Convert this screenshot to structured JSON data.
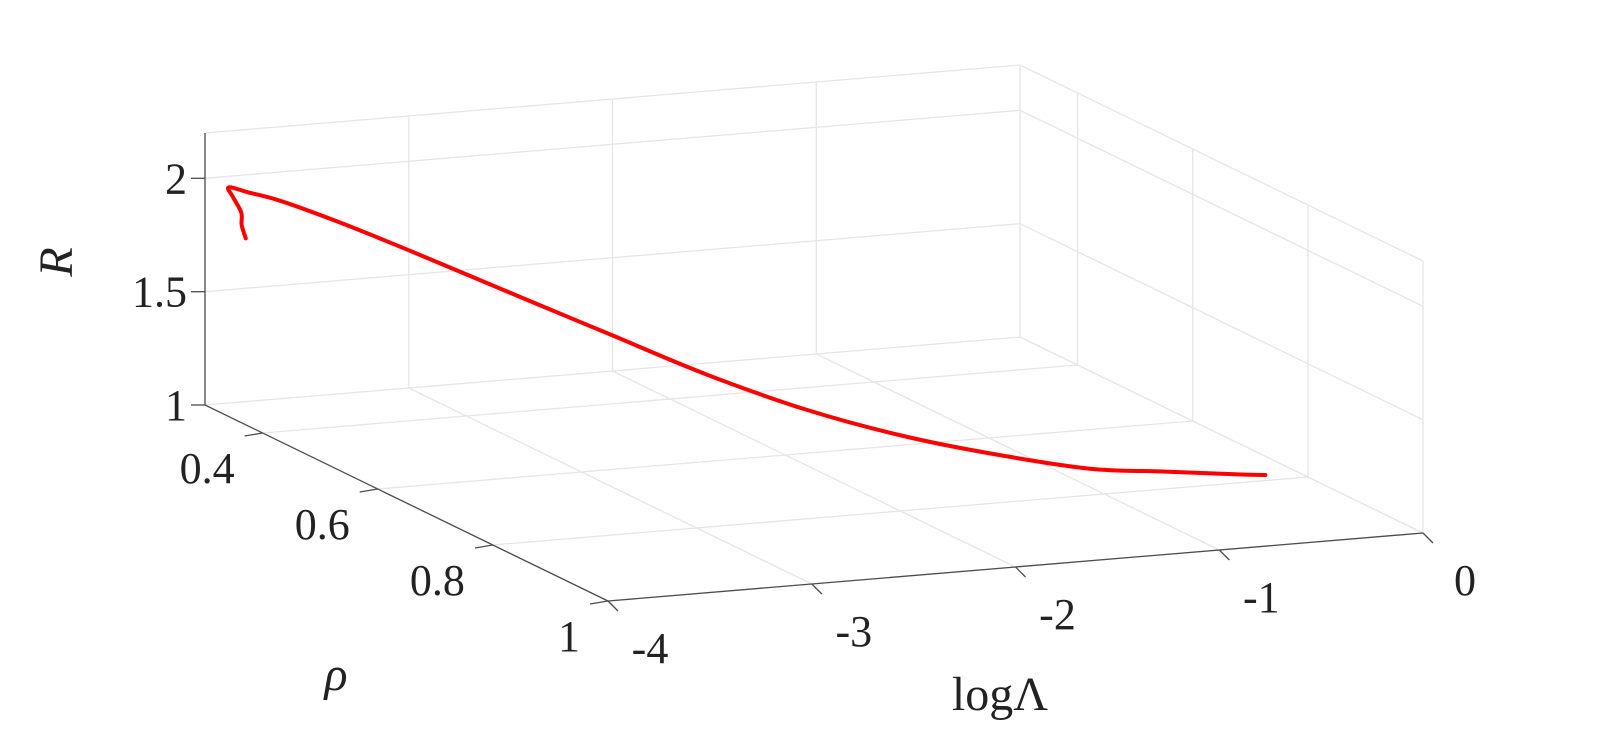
{
  "chart_data": {
    "type": "line3d",
    "title": "",
    "xlabel": "logΛ",
    "ylabel": "ρ",
    "zlabel": "R",
    "xlim": [
      -4,
      0
    ],
    "ylim": [
      0.3,
      1.0
    ],
    "zlim": [
      1.0,
      2.2
    ],
    "xticks": [
      {
        "value": -4,
        "label": "-4"
      },
      {
        "value": -3,
        "label": "-3"
      },
      {
        "value": -2,
        "label": "-2"
      },
      {
        "value": -1,
        "label": "-1"
      },
      {
        "value": 0,
        "label": "0"
      }
    ],
    "yticks": [
      {
        "value": 0.4,
        "label": "0.4"
      },
      {
        "value": 0.6,
        "label": "0.6"
      },
      {
        "value": 0.8,
        "label": "0.8"
      },
      {
        "value": 1.0,
        "label": "1"
      }
    ],
    "zticks": [
      {
        "value": 1.0,
        "label": "1"
      },
      {
        "value": 1.5,
        "label": "1.5"
      },
      {
        "value": 2.0,
        "label": "2"
      }
    ],
    "grid": true,
    "series": [
      {
        "color": "#ff0000",
        "points": [
          {
            "x": -3.8,
            "y": 0.3,
            "z": 1.72
          },
          {
            "x": -3.82,
            "y": 0.3,
            "z": 1.78
          },
          {
            "x": -3.85,
            "y": 0.31,
            "z": 1.85
          },
          {
            "x": -3.89,
            "y": 0.31,
            "z": 1.92
          },
          {
            "x": -3.94,
            "y": 0.32,
            "z": 1.98
          },
          {
            "x": -3.9,
            "y": 0.34,
            "z": 1.98
          },
          {
            "x": -3.8,
            "y": 0.36,
            "z": 1.96
          },
          {
            "x": -3.62,
            "y": 0.4,
            "z": 1.9
          },
          {
            "x": -3.35,
            "y": 0.44,
            "z": 1.79
          },
          {
            "x": -3.0,
            "y": 0.49,
            "z": 1.64
          },
          {
            "x": -2.65,
            "y": 0.53,
            "z": 1.49
          },
          {
            "x": -2.3,
            "y": 0.57,
            "z": 1.34
          },
          {
            "x": -1.95,
            "y": 0.62,
            "z": 1.22
          },
          {
            "x": -1.6,
            "y": 0.66,
            "z": 1.13
          },
          {
            "x": -1.25,
            "y": 0.7,
            "z": 1.07
          },
          {
            "x": -0.9,
            "y": 0.74,
            "z": 1.03
          },
          {
            "x": -0.6,
            "y": 0.76,
            "z": 1.02
          },
          {
            "x": -0.3,
            "y": 0.78,
            "z": 1.01
          },
          {
            "x": -0.18,
            "y": 0.79,
            "z": 1.01
          }
        ]
      }
    ]
  }
}
